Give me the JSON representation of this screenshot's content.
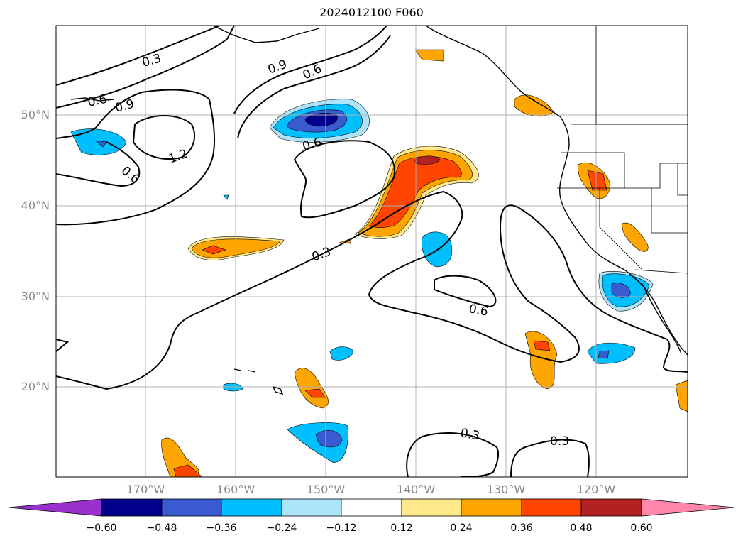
{
  "title": "2024012100 F060",
  "map": {
    "lat_ticks": [
      "50°N",
      "40°N",
      "30°N",
      "20°N"
    ],
    "lon_ticks": [
      "170°W",
      "160°W",
      "150°W",
      "140°W",
      "130°W",
      "120°W"
    ],
    "contour_labels": [
      "0.3",
      "0.6",
      "0.9",
      "1.2",
      "0.9",
      "0.6",
      "0.6",
      "0.6",
      "0.3",
      "0.6",
      "0.3",
      "0.3"
    ]
  },
  "colorbar": {
    "ticks": [
      "−0.60",
      "−0.48",
      "−0.36",
      "−0.24",
      "−0.12",
      "0.12",
      "0.24",
      "0.36",
      "0.48",
      "0.60"
    ],
    "colors": [
      "#9b30cf",
      "#00008b",
      "#3a5bd0",
      "#00bfff",
      "#aee4fa",
      "#ffffff",
      "#ffe98a",
      "#ffa500",
      "#ff4500",
      "#b22222",
      "#ff88aa"
    ]
  }
}
